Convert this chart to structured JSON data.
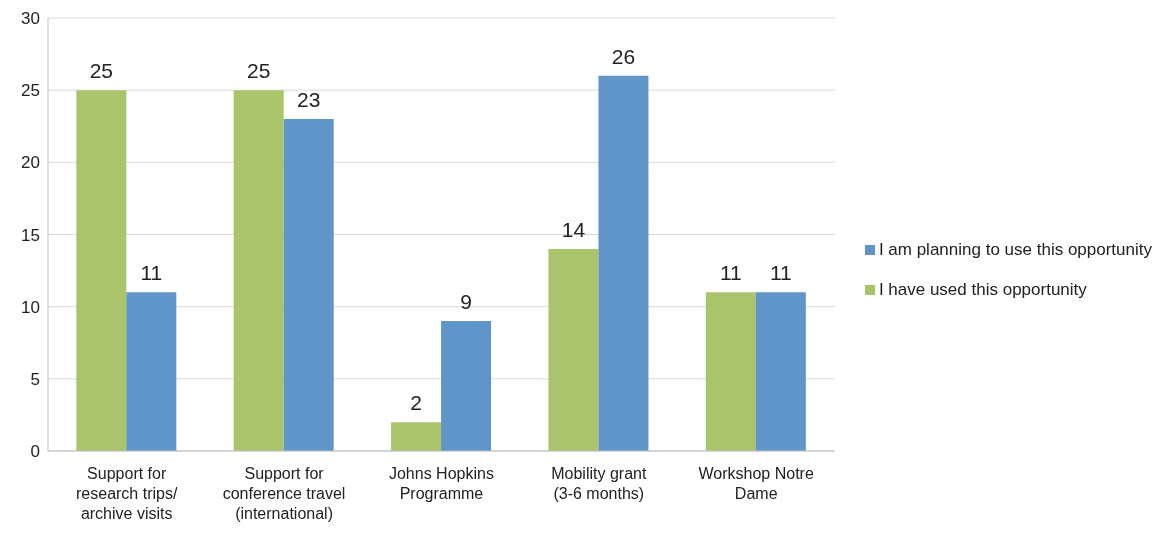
{
  "chart_data": {
    "type": "bar",
    "categories": [
      "Support for research trips/ archive visits",
      "Support for conference travel (international)",
      "Johns Hopkins Programme",
      "Mobility grant (3-6 months)",
      "Workshop Notre Dame"
    ],
    "series": [
      {
        "name": "I have used this opportunity",
        "color": "#a9c46a",
        "values": [
          25,
          25,
          2,
          14,
          11
        ]
      },
      {
        "name": "I am planning to use this opportunity",
        "color": "#5f95c9",
        "values": [
          11,
          23,
          9,
          26,
          11
        ]
      }
    ],
    "ylim": [
      0,
      30
    ],
    "yticks": [
      0,
      5,
      10,
      15,
      20,
      25,
      30
    ],
    "grid": "y",
    "legend": "right",
    "data_labels": true
  }
}
